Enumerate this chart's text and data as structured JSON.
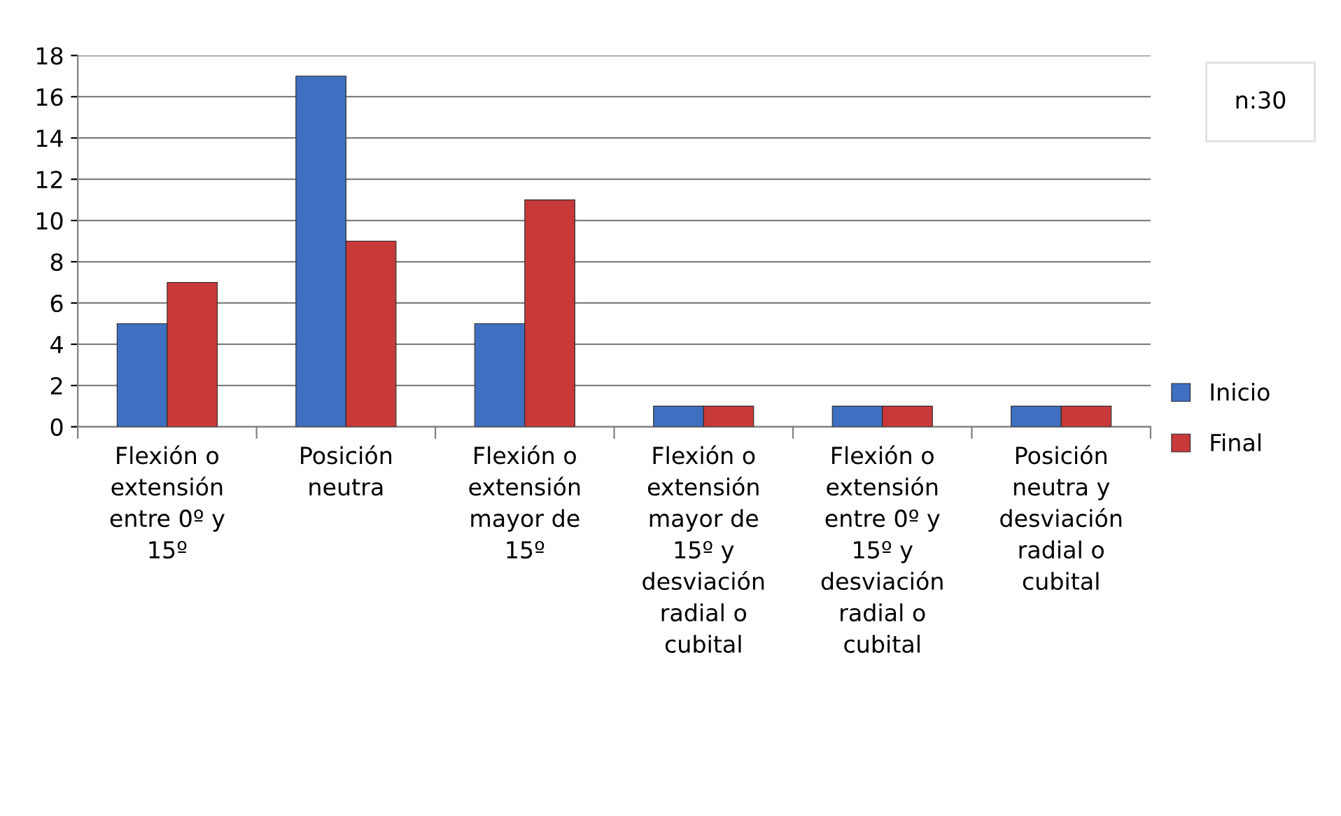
{
  "chart_data": {
    "type": "bar",
    "categories": [
      "Flexión o extensión entre 0º y 15º",
      "Posición neutra",
      "Flexión o extensión mayor de 15º",
      "Flexión o extensión mayor de 15º y desviación radial o cubital",
      "Flexión o extensión entre 0º y 15º y desviación radial o cubital",
      "Posición neutra y desviación radial o cubital"
    ],
    "series": [
      {
        "name": "Inicio",
        "color": "#3f6fc0",
        "values": [
          5,
          17,
          5,
          1,
          1,
          1
        ]
      },
      {
        "name": "Final",
        "color": "#c8393a",
        "values": [
          7,
          9,
          11,
          1,
          1,
          1
        ]
      }
    ],
    "ylim": [
      0,
      18
    ],
    "yticks": [
      0,
      2,
      4,
      6,
      8,
      10,
      12,
      14,
      16,
      18
    ],
    "grid": "y",
    "legend": "right",
    "annotations": [
      "n:30"
    ]
  }
}
